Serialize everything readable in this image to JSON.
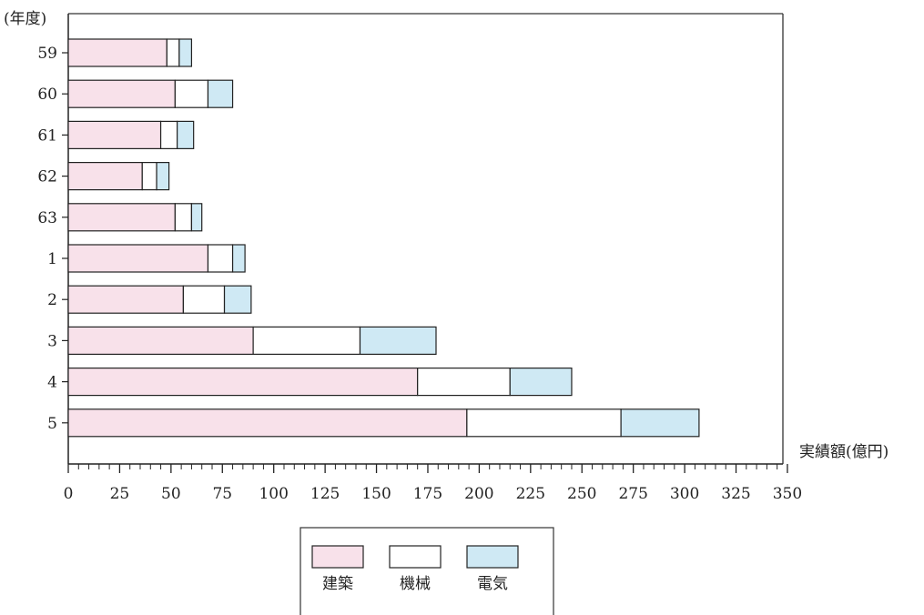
{
  "chart_data": {
    "type": "bar",
    "orientation": "horizontal",
    "stacked": true,
    "ylabel": "(年度)",
    "xlabel": "実績額(億円)",
    "categories": [
      "59",
      "60",
      "61",
      "62",
      "63",
      "1",
      "2",
      "3",
      "4",
      "5"
    ],
    "series": [
      {
        "name": "建築",
        "color": "#f8e1ea",
        "values": [
          48,
          52,
          45,
          36,
          52,
          68,
          56,
          90,
          170,
          194
        ]
      },
      {
        "name": "機械",
        "color": "#ffffff",
        "values": [
          6,
          16,
          8,
          7,
          8,
          12,
          20,
          52,
          45,
          75
        ]
      },
      {
        "name": "電気",
        "color": "#cfe9f4",
        "values": [
          6,
          12,
          8,
          6,
          5,
          6,
          13,
          37,
          30,
          38
        ]
      }
    ],
    "xlim": [
      0,
      350
    ],
    "xticks": [
      0,
      25,
      50,
      75,
      100,
      125,
      150,
      175,
      200,
      225,
      250,
      275,
      300,
      325,
      350
    ],
    "minor_tick_step": 5,
    "grid": false,
    "legend": {
      "position": "bottom-center",
      "items": [
        "建築",
        "機械",
        "電気"
      ]
    }
  }
}
